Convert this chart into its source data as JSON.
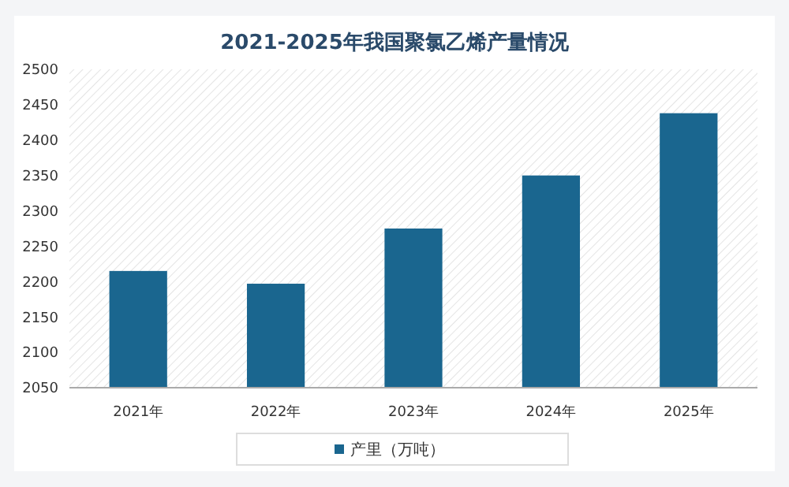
{
  "chart_data": {
    "type": "bar",
    "title": "2021-2025年我国聚氯乙烯产量情况",
    "categories": [
      "2021年",
      "2022年",
      "2023年",
      "2024年",
      "2025年"
    ],
    "series": [
      {
        "name": "产里（万吨）",
        "color": "#1a668f",
        "values": [
          2215,
          2197,
          2275,
          2350,
          2438
        ]
      }
    ],
    "ylim": [
      2050,
      2500
    ],
    "yticks": [
      2050,
      2100,
      2150,
      2200,
      2250,
      2300,
      2350,
      2400,
      2450,
      2500
    ],
    "legend": "bottom"
  }
}
